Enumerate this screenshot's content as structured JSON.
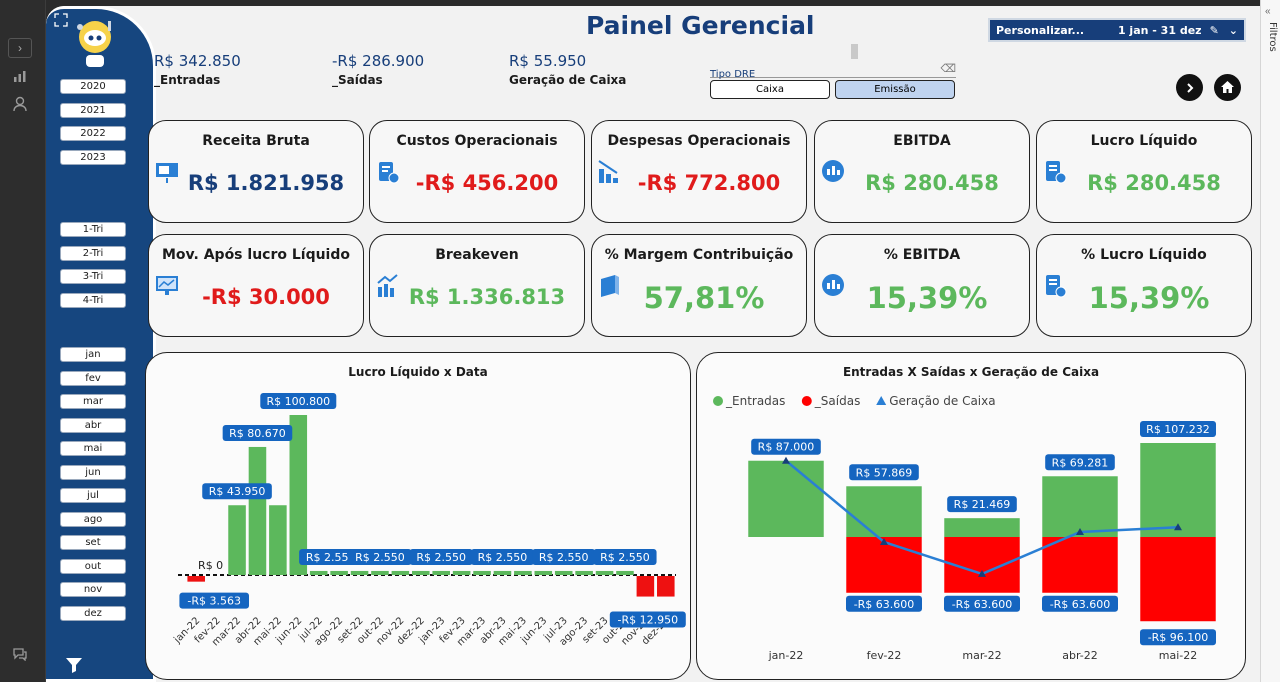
{
  "header": {
    "title": "Painel Gerencial",
    "personalize_label": "Personalizar...",
    "date_range": "1 jan - 31 dez"
  },
  "right_rail": {
    "label": "Filtros"
  },
  "summary": [
    {
      "value": "R$ 342.850",
      "label": "_Entradas"
    },
    {
      "value": "-R$ 286.900",
      "label": "_Saídas"
    },
    {
      "value": "R$ 55.950",
      "label": "Geração de Caixa"
    }
  ],
  "tipo_dre": {
    "label": "Tipo DRE",
    "options": [
      "Caixa",
      "Emissão"
    ],
    "selected": "Emissão"
  },
  "years": [
    "2020",
    "2021",
    "2022",
    "2023"
  ],
  "quarters": [
    "1-Tri",
    "2-Tri",
    "3-Tri",
    "4-Tri"
  ],
  "months": [
    "jan",
    "fev",
    "mar",
    "abr",
    "mai",
    "jun",
    "jul",
    "ago",
    "set",
    "out",
    "nov",
    "dez"
  ],
  "cards": [
    {
      "title": "Receita Bruta",
      "value": "R$ 1.821.958",
      "color": "#173e7a",
      "icon": "presentation-icon"
    },
    {
      "title": "Custos Operacionais",
      "value": "-R$ 456.200",
      "color": "#e01b1b",
      "icon": "cost-clipboard-icon"
    },
    {
      "title": "Despesas Operacionais",
      "value": "-R$ 772.800",
      "color": "#e01b1b",
      "icon": "bar-decline-icon"
    },
    {
      "title": "EBITDA",
      "value": "R$ 280.458",
      "color": "#5cb85c",
      "icon": "chat-chart-icon"
    },
    {
      "title": "Lucro Líquido",
      "value": "R$ 280.458",
      "color": "#5cb85c",
      "icon": "report-money-icon"
    },
    {
      "title": "Mov. Após lucro Líquido",
      "value": "-R$ 30.000",
      "color": "#e01b1b",
      "icon": "monitor-chart-icon"
    },
    {
      "title": "Breakeven",
      "value": "R$ 1.336.813",
      "color": "#5cb85c",
      "icon": "trend-bars-icon"
    },
    {
      "title": "% Margem Contribuição",
      "value": "57,81%",
      "color": "#5cb85c",
      "icon": "book-icon",
      "big": true
    },
    {
      "title": "% EBITDA",
      "value": "15,39%",
      "color": "#5cb85c",
      "icon": "chat-chart-icon",
      "big": true
    },
    {
      "title": "% Lucro Líquido",
      "value": "15,39%",
      "color": "#5cb85c",
      "icon": "report-money-icon",
      "big": true
    }
  ],
  "chart_data": [
    {
      "type": "bar",
      "title": "Lucro Líquido x Data",
      "categories": [
        "jan-22",
        "fev-22",
        "mar-22",
        "abr-22",
        "mai-22",
        "jun-22",
        "jul-22",
        "ago-22",
        "set-22",
        "out-22",
        "nov-22",
        "dez-22",
        "jan-23",
        "fev-23",
        "mar-23",
        "abr-23",
        "mai-23",
        "jun-23",
        "jul-23",
        "ago-23",
        "set-23",
        "out-23",
        "nov-23",
        "dez-23"
      ],
      "values": [
        -3563,
        0,
        43950,
        80670,
        43950,
        100800,
        2550,
        2550,
        2550,
        2550,
        2550,
        2550,
        2550,
        2550,
        2550,
        2550,
        2550,
        2550,
        2550,
        2550,
        2550,
        2550,
        -12950,
        -12950
      ],
      "data_labels": [
        {
          "i": 0,
          "text": "-R$ 3.563"
        },
        {
          "i": 1,
          "text": "R$ 0"
        },
        {
          "i": 2,
          "text": "R$ 43.950"
        },
        {
          "i": 3,
          "text": "R$ 80.670"
        },
        {
          "i": 5,
          "text": "R$ 100.800"
        },
        {
          "i": 6,
          "text": "R$ 2.550"
        },
        {
          "i": 9,
          "text": "R$ 2.550"
        },
        {
          "i": 12,
          "text": "R$ 2.550"
        },
        {
          "i": 15,
          "text": "R$ 2.550"
        },
        {
          "i": 18,
          "text": "R$ 2.550"
        },
        {
          "i": 21,
          "text": "R$ 2.550"
        },
        {
          "i": 23,
          "text": "-R$ 12.950"
        }
      ],
      "colors": {
        "positive": "#5cb85c",
        "negative": "#ee1111",
        "label_bg": "#1565c0"
      }
    },
    {
      "type": "bar",
      "title": "Entradas X Saídas x Geração de Caixa",
      "categories": [
        "jan-22",
        "fev-22",
        "mar-22",
        "abr-22",
        "mai-22"
      ],
      "series": [
        {
          "name": "_Entradas",
          "type": "bar",
          "color": "#5cb85c",
          "values": [
            87000,
            57869,
            21469,
            69281,
            107232
          ],
          "labels": [
            "R$ 87.000",
            "R$ 57.869",
            "R$ 21.469",
            "R$ 69.281",
            "R$ 107.232"
          ]
        },
        {
          "name": "_Saídas",
          "type": "bar",
          "color": "#ff0000",
          "values": [
            0,
            -63600,
            -63600,
            -63600,
            -96100
          ],
          "labels": [
            "",
            "-R$ 63.600",
            "-R$ 63.600",
            "-R$ 63.600",
            "-R$ 96.100"
          ]
        },
        {
          "name": "Geração de Caixa",
          "type": "line",
          "color": "#2a7fd4",
          "values": [
            87000,
            -5731,
            -42131,
            5681,
            11132
          ]
        }
      ],
      "legend": "top-left"
    }
  ]
}
